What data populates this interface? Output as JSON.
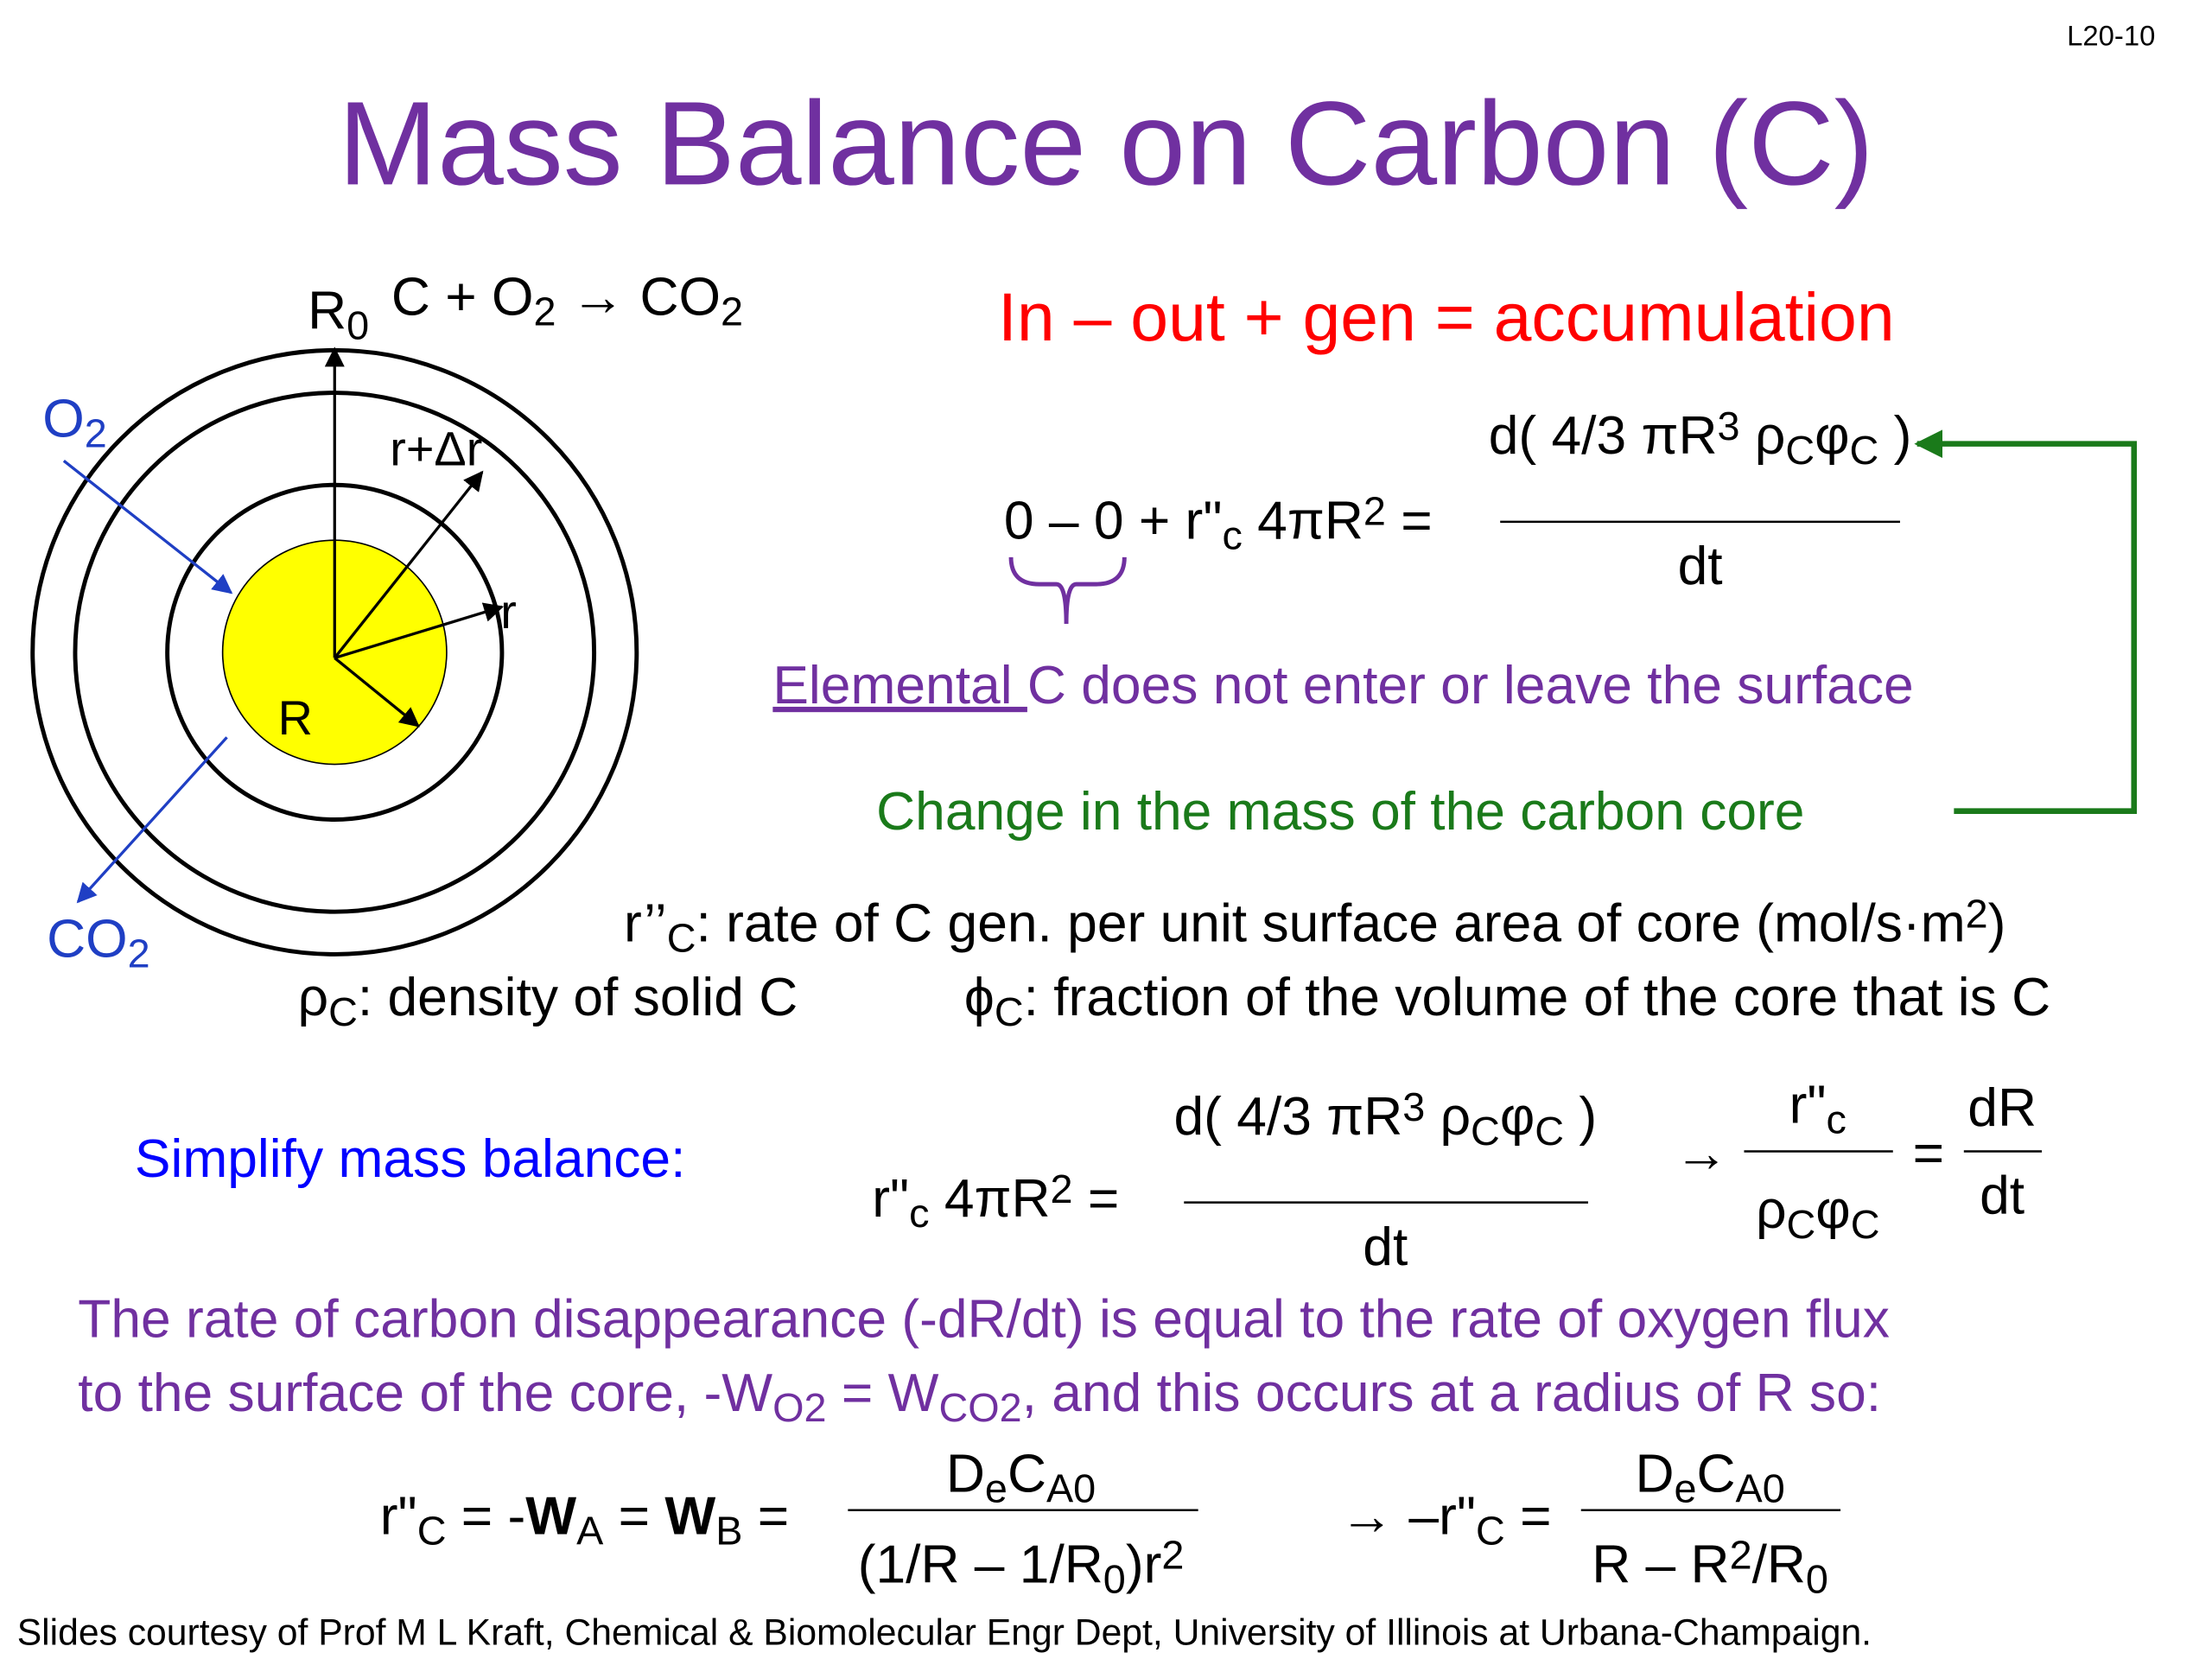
{
  "slide_number": "L20-10",
  "title": "Mass Balance on Carbon (C)",
  "diagram": {
    "outer_radius": [
      {
        "text": "R"
      },
      {
        "text": "0",
        "style": "sub"
      }
    ],
    "reaction": [
      {
        "text": "C + O"
      },
      {
        "text": "2",
        "style": "sub"
      },
      {
        "text": " → CO"
      },
      {
        "text": "2",
        "style": "sub"
      }
    ],
    "shell_radius": "r+Δr",
    "radius": "r",
    "core_radius": "R",
    "reactant": [
      {
        "text": "O"
      },
      {
        "text": "2",
        "style": "sub"
      }
    ],
    "product": [
      {
        "text": "CO"
      },
      {
        "text": "2",
        "style": "sub"
      }
    ]
  },
  "balance_statement": "In – out + gen = accumulation",
  "equation_1": {
    "left": [
      {
        "text": "0 – 0 + r\"",
        "style": ""
      },
      {
        "text": "c",
        "style": "sub"
      },
      {
        "text": " 4πR"
      },
      {
        "text": "2",
        "style": "sup"
      },
      {
        "text": " ="
      }
    ],
    "numerator": [
      {
        "text": "d( 4/3 πR"
      },
      {
        "text": "3",
        "style": "sup"
      },
      {
        "text": " ρ"
      },
      {
        "text": "C",
        "style": "sub"
      },
      {
        "text": "φ"
      },
      {
        "text": "C",
        "style": "sub"
      },
      {
        "text": " )"
      }
    ],
    "denominator": "dt"
  },
  "brace_note": [
    {
      "text": "Elemental ",
      "style": "underline"
    },
    {
      "text": "C does not enter or leave the surface"
    }
  ],
  "core_note": "Change in the mass of the carbon core",
  "definitions": [
    [
      {
        "text": "r’’"
      },
      {
        "text": "C",
        "style": "sub"
      },
      {
        "text": ": rate of C gen. per unit surface area of core (mol/s·m"
      },
      {
        "text": "2",
        "style": "sup"
      },
      {
        "text": ")"
      }
    ],
    [
      {
        "text": "ρ"
      },
      {
        "text": "C",
        "style": "sub"
      },
      {
        "text": ": density of solid C"
      }
    ],
    [
      {
        "text": "ϕ"
      },
      {
        "text": "C",
        "style": "sub"
      },
      {
        "text": ": fraction of the volume of the core that is C"
      }
    ]
  ],
  "simplify_label": "Simplify mass balance:",
  "equation_2": {
    "left": [
      {
        "text": "r\""
      },
      {
        "text": "c",
        "style": "sub"
      },
      {
        "text": " 4πR"
      },
      {
        "text": "2",
        "style": "sup"
      },
      {
        "text": " ="
      }
    ],
    "numerator": [
      {
        "text": "d( 4/3 πR"
      },
      {
        "text": "3",
        "style": "sup"
      },
      {
        "text": " ρ"
      },
      {
        "text": "C",
        "style": "sub"
      },
      {
        "text": "φ"
      },
      {
        "text": "C",
        "style": "sub"
      },
      {
        "text": " )"
      }
    ],
    "denominator": "dt",
    "arrow": "→",
    "ratio_numerator": [
      {
        "text": "r\""
      },
      {
        "text": "c",
        "style": "sub"
      }
    ],
    "ratio_denominator": [
      {
        "text": "ρ"
      },
      {
        "text": "C",
        "style": "sub"
      },
      {
        "text": "φ"
      },
      {
        "text": "C",
        "style": "sub"
      }
    ],
    "equals": "=",
    "rate_numerator": "dR",
    "rate_denominator": "dt"
  },
  "paragraph": [
    [
      {
        "text": "The rate of carbon disappearance (-dR/dt) is equal to the rate of oxygen flux"
      }
    ],
    [
      {
        "text": "to the surface of the core, -W"
      },
      {
        "text": "O2",
        "style": "sub"
      },
      {
        "text": " = W"
      },
      {
        "text": "CO2",
        "style": "sub"
      },
      {
        "text": ", and this occurs at a radius of R so:"
      }
    ]
  ],
  "equation_3": {
    "left": [
      {
        "text": "r\""
      },
      {
        "text": "C",
        "style": "sub"
      },
      {
        "text": " = -"
      },
      {
        "text": "W",
        "style": "bold"
      },
      {
        "text": "A",
        "style": "sub"
      },
      {
        "text": " = "
      },
      {
        "text": "W",
        "style": "bold"
      },
      {
        "text": "B",
        "style": "sub"
      },
      {
        "text": " ="
      }
    ],
    "numerator": [
      {
        "text": "D"
      },
      {
        "text": "e",
        "style": "sub"
      },
      {
        "text": "C"
      },
      {
        "text": "A0",
        "style": "sub"
      }
    ],
    "denominator": [
      {
        "text": "(1/R – 1/R"
      },
      {
        "text": "0",
        "style": "sub"
      },
      {
        "text": ")r"
      },
      {
        "text": "2",
        "style": "sup"
      }
    ],
    "right_left": [
      {
        "text": "→ –r\""
      },
      {
        "text": "C",
        "style": "sub"
      },
      {
        "text": " ="
      }
    ],
    "right_numerator": [
      {
        "text": "D"
      },
      {
        "text": "e",
        "style": "sub"
      },
      {
        "text": "C"
      },
      {
        "text": "A0",
        "style": "sub"
      }
    ],
    "right_denominator": [
      {
        "text": "R – R"
      },
      {
        "text": "2",
        "style": "sup"
      },
      {
        "text": "/R"
      },
      {
        "text": "0",
        "style": "sub"
      }
    ]
  },
  "footer": "Slides courtesy of Prof M L Kraft, Chemical & Biomolecular Engr Dept, University of Illinois at Urbana-Champaign."
}
